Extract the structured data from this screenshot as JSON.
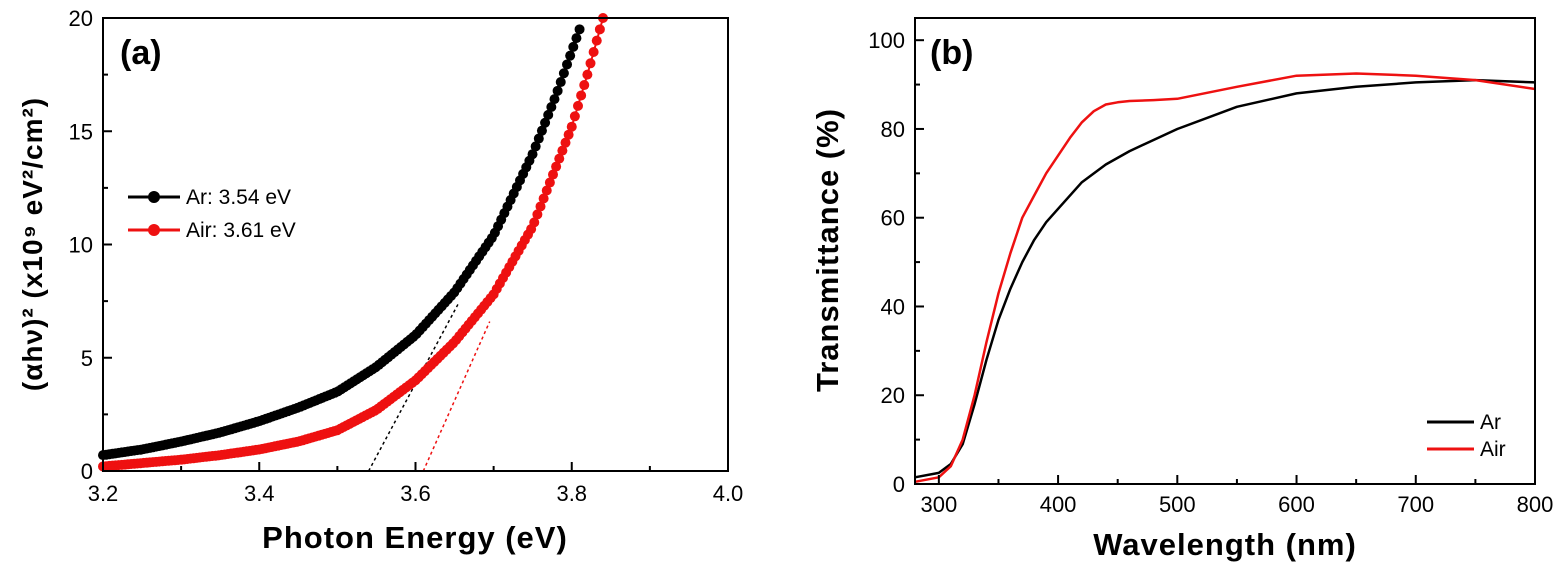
{
  "chart_data": [
    {
      "type": "scatter",
      "panel_label": "(a)",
      "xlabel": "Photon Energy (eV)",
      "ylabel": "(αhν)² (x10⁹ eV²/cm²)",
      "xlim": [
        3.2,
        4.0
      ],
      "ylim": [
        0,
        20
      ],
      "xticks": [
        "3.2",
        "3.4",
        "3.6",
        "3.8",
        "4.0"
      ],
      "yticks": [
        "0",
        "5",
        "10",
        "15",
        "20"
      ],
      "legend_position": "center-left",
      "series": [
        {
          "name": "Ar: 3.54 eV",
          "color": "#000000",
          "x": [
            3.2,
            3.25,
            3.3,
            3.35,
            3.4,
            3.45,
            3.5,
            3.55,
            3.6,
            3.65,
            3.7,
            3.75,
            3.78,
            3.81
          ],
          "y": [
            0.7,
            0.95,
            1.3,
            1.7,
            2.2,
            2.8,
            3.5,
            4.6,
            6.0,
            7.9,
            10.4,
            14.0,
            16.6,
            19.5
          ],
          "fit_line": {
            "x": [
              3.54,
              3.655
            ],
            "y": [
              0,
              7.4
            ]
          }
        },
        {
          "name": "Air: 3.61 eV",
          "color": "#ee1111",
          "x": [
            3.2,
            3.25,
            3.3,
            3.35,
            3.4,
            3.45,
            3.5,
            3.55,
            3.6,
            3.65,
            3.7,
            3.75,
            3.8,
            3.82,
            3.84
          ],
          "y": [
            0.2,
            0.35,
            0.5,
            0.7,
            0.95,
            1.3,
            1.8,
            2.7,
            4.0,
            5.7,
            7.8,
            10.8,
            15.2,
            17.5,
            20.0
          ],
          "fit_line": {
            "x": [
              3.61,
              3.695
            ],
            "y": [
              0,
              6.6
            ]
          }
        }
      ]
    },
    {
      "type": "line",
      "panel_label": "(b)",
      "xlabel": "Wavelength (nm)",
      "ylabel": "Transmittance (%)",
      "xlim": [
        280,
        800
      ],
      "ylim": [
        0,
        105
      ],
      "xticks": [
        "300",
        "400",
        "500",
        "600",
        "700",
        "800"
      ],
      "yticks": [
        "0",
        "20",
        "40",
        "60",
        "80",
        "100"
      ],
      "legend_position": "bottom-right",
      "series": [
        {
          "name": "Ar",
          "color": "#000000",
          "x": [
            280,
            300,
            310,
            320,
            330,
            340,
            350,
            360,
            370,
            380,
            390,
            400,
            420,
            440,
            460,
            500,
            550,
            600,
            650,
            700,
            750,
            800
          ],
          "y": [
            1.5,
            2.5,
            4.5,
            9,
            18,
            28,
            37,
            44,
            50,
            55,
            59,
            62,
            68,
            72,
            75,
            80,
            85,
            88,
            89.5,
            90.5,
            91,
            90.5
          ]
        },
        {
          "name": "Air",
          "color": "#ee1111",
          "x": [
            280,
            300,
            310,
            320,
            330,
            340,
            350,
            360,
            370,
            380,
            390,
            400,
            410,
            420,
            430,
            440,
            450,
            460,
            480,
            500,
            550,
            600,
            650,
            700,
            750,
            800
          ],
          "y": [
            0.5,
            1.5,
            4,
            10,
            20,
            32,
            43,
            52,
            60,
            65,
            70,
            74,
            78,
            81.5,
            84,
            85.5,
            86,
            86.3,
            86.5,
            86.8,
            89.5,
            92,
            92.5,
            92,
            91,
            89
          ]
        }
      ]
    }
  ]
}
